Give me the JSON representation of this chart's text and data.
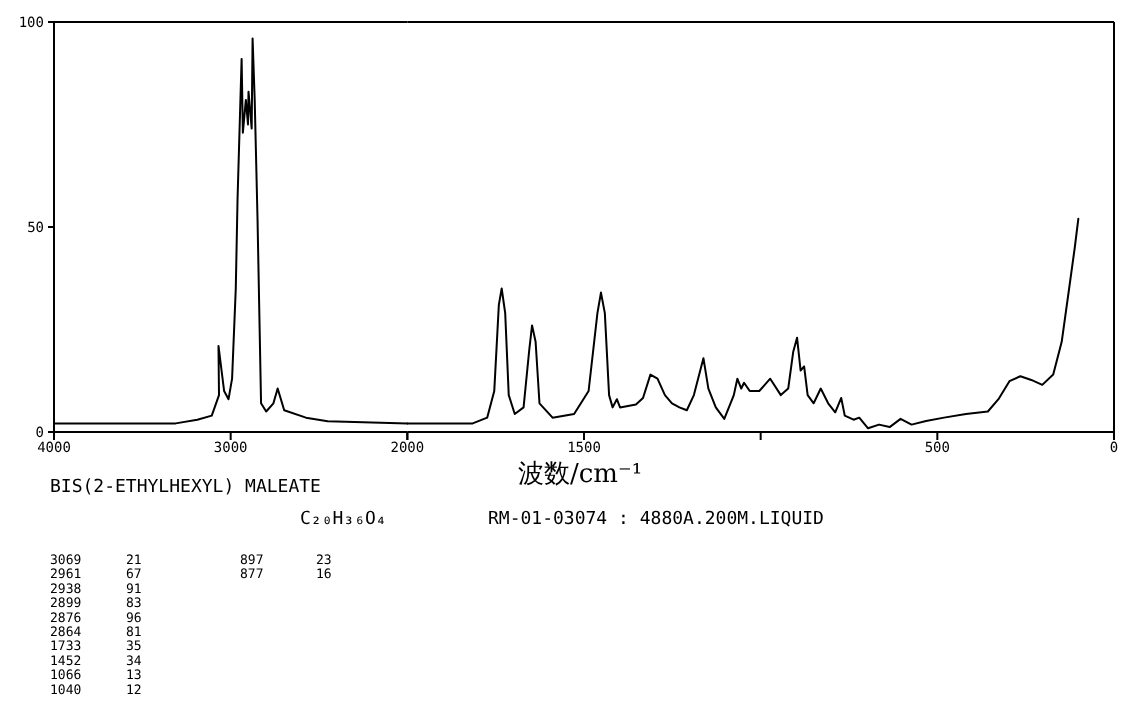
{
  "chart_data": [
    {
      "type": "line",
      "title": "BIS(2-ETHYLHEXYL) MALEATE",
      "subtitle": "C₂₀H₃₆O₄",
      "annotations": [
        "RM-01-03074 : 4880A.200M.LIQUID",
        "3069   21",
        "2961   67",
        "2938   91",
        "2899   83",
        "2876   96",
        "2864   81",
        "1733   35",
        "1452   34",
        "1066   13",
        "1040   12",
        "897   23",
        "877   16"
      ],
      "xlim": [
        4000,
        2000
      ],
      "xticks": [
        4000,
        3000,
        2000
      ],
      "ylim": [
        0,
        100
      ],
      "yticks": [
        0,
        50,
        100
      ],
      "grid": false,
      "marker": "none",
      "line_style": "solid",
      "series": [
        {
          "color": "#000000",
          "x": [
            4000,
            3311,
            3189,
            3107,
            3066,
            3069,
            3037,
            3012,
            2992,
            2971,
            2961,
            2938,
            2931,
            2914,
            2902,
            2899,
            2881,
            2876,
            2864,
            2848,
            2828,
            2799,
            2758,
            2734,
            2697,
            2574,
            2451,
            2000
          ],
          "values": [
            2.1,
            2.1,
            3,
            4,
            9,
            21,
            10,
            8,
            13,
            35,
            57,
            91,
            73,
            81,
            75,
            83,
            74,
            96,
            81,
            52,
            7,
            5,
            7,
            10.6,
            5.3,
            3.5,
            2.6,
            2.1
          ]
        }
      ]
    },
    {
      "type": "line",
      "xlabel": "波数/cm⁻¹",
      "xlim": [
        2000,
        0
      ],
      "xticks": [
        {
          "value": 2000,
          "label": null
        },
        1500,
        {
          "value": 1000,
          "label": null
        },
        500,
        0
      ],
      "ylim": [
        0,
        100
      ],
      "tick_labels": "x",
      "grid": false,
      "marker": "none",
      "line_style": "solid",
      "series": [
        {
          "color": "#000000",
          "x": [
            2000,
            1815,
            1774,
            1754,
            1741,
            1733,
            1723,
            1713,
            1696,
            1671,
            1655,
            1647,
            1637,
            1626,
            1589,
            1528,
            1487,
            1462,
            1452,
            1441,
            1429,
            1419,
            1407,
            1398,
            1353,
            1333,
            1312,
            1292,
            1271,
            1251,
            1230,
            1209,
            1189,
            1162,
            1148,
            1127,
            1103,
            1076,
            1066,
            1055,
            1047,
            1031,
            1004,
            973,
            943,
            922,
            908,
            897,
            887,
            877,
            867,
            850,
            830,
            809,
            789,
            772,
            762,
            737,
            721,
            696,
            665,
            635,
            604,
            573,
            532,
            481,
            419,
            357,
            327,
            296,
            265,
            234,
            203,
            172,
            148,
            127,
            111,
            101
          ],
          "values": [
            2.1,
            2.1,
            3.5,
            10,
            31,
            35,
            29,
            9,
            4.4,
            6,
            20,
            26,
            22,
            7,
            3.5,
            4.4,
            10,
            29,
            34,
            29,
            9,
            6,
            8,
            6,
            6.7,
            8.3,
            14,
            13,
            9,
            7,
            6,
            5.3,
            9,
            18,
            10.6,
            6,
            3.2,
            9,
            13,
            10.6,
            12,
            10,
            10,
            13,
            9,
            10.6,
            19.5,
            23,
            15,
            16,
            9,
            7,
            10.6,
            7,
            4.8,
            8.3,
            4,
            3,
            3.5,
            0.9,
            1.8,
            1.2,
            3.2,
            1.8,
            2.7,
            3.5,
            4.4,
            5,
            8,
            12.4,
            13.6,
            12.7,
            11.5,
            14,
            22,
            35,
            45,
            52
          ]
        }
      ]
    }
  ]
}
